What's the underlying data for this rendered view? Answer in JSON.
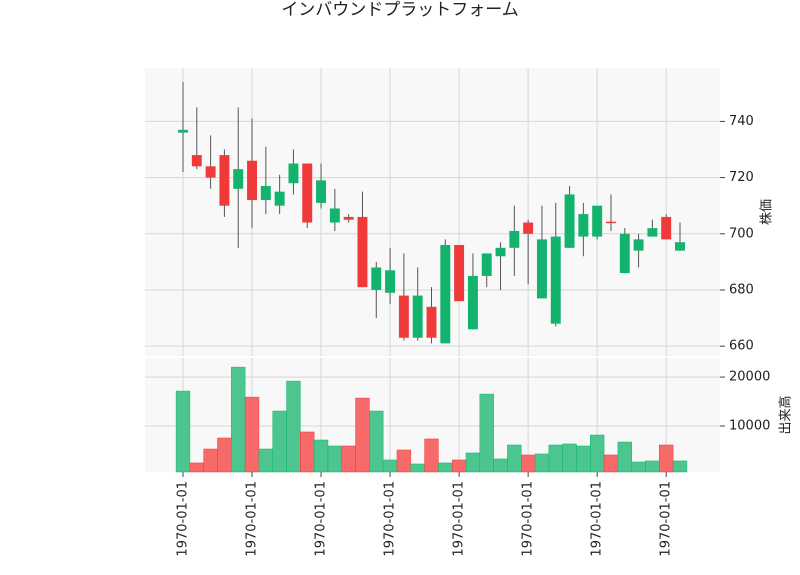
{
  "chart_data": {
    "type": "candlestick",
    "title": "インバウンドプラットフォーム",
    "ylabel": "株価",
    "categories": [
      "1970-01-01",
      null,
      null,
      null,
      null,
      "1970-01-01",
      null,
      null,
      null,
      null,
      "1970-01-01",
      null,
      null,
      null,
      null,
      "1970-01-01",
      null,
      null,
      null,
      null,
      "1970-01-01",
      null,
      null,
      null,
      null,
      "1970-01-01",
      null,
      null,
      null,
      null,
      "1970-01-01",
      null,
      null,
      null,
      null,
      "1970-01-01",
      null
    ],
    "open": [
      736,
      728,
      724,
      728,
      716,
      726,
      712,
      710,
      718,
      725,
      711,
      704,
      706,
      706,
      680,
      679,
      678,
      663,
      674,
      661,
      696,
      666,
      685,
      692,
      695,
      704,
      677,
      668,
      695,
      699,
      699,
      704.3,
      686,
      694,
      699,
      706,
      694
    ],
    "high": [
      754,
      745,
      735,
      730,
      745,
      741,
      731,
      721,
      730,
      725,
      725,
      716,
      707,
      715,
      690,
      695,
      693,
      688,
      681,
      698,
      696,
      693,
      693,
      697,
      710,
      705,
      710,
      711,
      717,
      711,
      710,
      714,
      702,
      700,
      705,
      707,
      704
    ],
    "low": [
      722,
      723,
      716,
      706,
      695,
      702,
      707,
      707,
      714,
      702,
      709,
      701,
      704,
      681,
      670,
      675,
      662,
      662,
      661,
      661,
      676,
      666,
      681,
      680,
      685,
      682,
      677,
      667,
      695,
      692,
      698,
      701,
      686,
      688,
      699,
      698,
      694
    ],
    "close": [
      737,
      724,
      720,
      710,
      723,
      712,
      717,
      715,
      725,
      704,
      719,
      709,
      705,
      681,
      688,
      687,
      663,
      678,
      663,
      696,
      676,
      685,
      693,
      695,
      701,
      700,
      698,
      699,
      714,
      707,
      710,
      703.8,
      700,
      698,
      702,
      698,
      697
    ],
    "up_color": "#13b36e",
    "down_color": "#f03a3a",
    "ylim": [
      656.5,
      759
    ],
    "yticks": [
      660,
      680,
      700,
      720,
      740
    ],
    "grid": true,
    "volume": {
      "ylabel": "出来高",
      "values": [
        17140,
        2450,
        5300,
        7550,
        22040,
        15900,
        5300,
        13060,
        19180,
        8780,
        7140,
        5920,
        5920,
        15710,
        13060,
        3060,
        5100,
        2240,
        7350,
        2450,
        3060,
        4490,
        16530,
        3270,
        6120,
        4080,
        4290,
        6120,
        6330,
        5920,
        8160,
        4080,
        6730,
        2650,
        2860,
        6120,
        2860
      ],
      "up_color": "#4cc68e",
      "down_color": "#f66a6a",
      "ylim": [
        600,
        23900
      ],
      "yticks": [
        10000,
        20000
      ]
    }
  }
}
